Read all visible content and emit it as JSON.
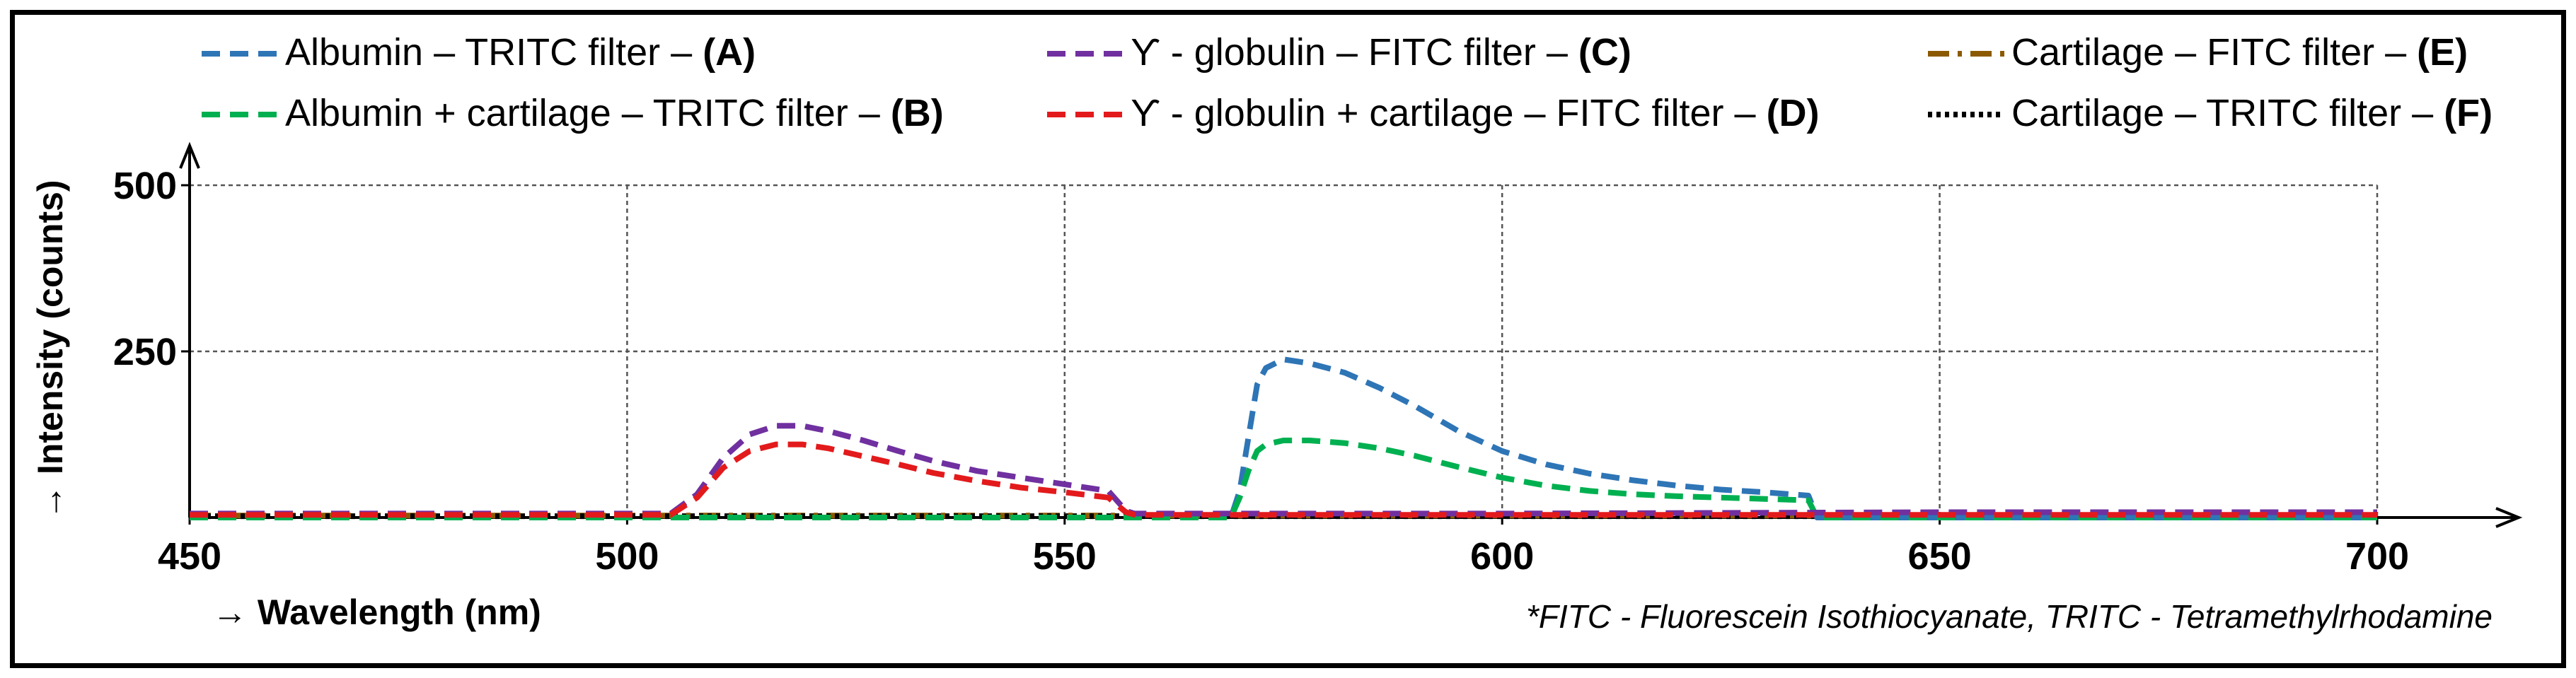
{
  "chart_data": {
    "type": "line",
    "title": "",
    "xlabel": "→ Wavelength (nm)",
    "ylabel": "→ Intensity (counts)",
    "xlim": [
      450,
      700
    ],
    "ylim": [
      0,
      500
    ],
    "x_ticks": [
      "450",
      "500",
      "550",
      "600",
      "650",
      "700"
    ],
    "y_ticks": [
      "250",
      "500"
    ],
    "grid": true,
    "legend_position": "top",
    "footnote": "*FITC - Fluorescein Isothiocyanate, TRITC - Tetramethylrhodamine",
    "series": [
      {
        "name": "Albumin – TRITC filter – ",
        "label": "(A)",
        "color": "#2E75B6",
        "dash": "dashed",
        "x": [
          450,
          569,
          570,
          571,
          572,
          573,
          575,
          578,
          582,
          586,
          590,
          595,
          600,
          605,
          610,
          615,
          620,
          625,
          630,
          635,
          636,
          650,
          700
        ],
        "y": [
          0,
          0,
          40,
          120,
          200,
          225,
          238,
          232,
          218,
          195,
          168,
          130,
          100,
          80,
          66,
          56,
          48,
          42,
          38,
          33,
          0,
          0,
          0
        ]
      },
      {
        "name": "Albumin + cartilage – TRITC filter – ",
        "label": "(B)",
        "color": "#00B050",
        "dash": "dashed",
        "x": [
          450,
          569,
          570,
          571,
          572,
          573,
          575,
          578,
          582,
          586,
          590,
          595,
          600,
          605,
          610,
          615,
          620,
          625,
          630,
          635,
          636,
          650,
          700
        ],
        "y": [
          0,
          0,
          30,
          70,
          100,
          110,
          116,
          116,
          112,
          104,
          93,
          76,
          60,
          48,
          40,
          35,
          32,
          30,
          28,
          26,
          0,
          0,
          0
        ]
      },
      {
        "name": "ϒ - globulin – FITC filter – ",
        "label": "(C)",
        "color": "#7030A0",
        "dash": "dashed",
        "x": [
          450,
          505,
          508,
          511,
          514,
          517,
          520,
          523,
          527,
          531,
          535,
          540,
          545,
          550,
          555,
          557,
          558,
          600,
          650,
          700
        ],
        "y": [
          6,
          6,
          35,
          90,
          125,
          138,
          138,
          130,
          116,
          100,
          85,
          70,
          60,
          50,
          40,
          10,
          6,
          6,
          8,
          8
        ]
      },
      {
        "name": "ϒ - globulin + cartilage – FITC filter – ",
        "label": "(D)",
        "color": "#E31A1C",
        "dash": "dashed",
        "x": [
          450,
          505,
          508,
          511,
          514,
          517,
          520,
          523,
          527,
          531,
          535,
          540,
          545,
          550,
          555,
          557,
          558,
          600,
          650,
          700
        ],
        "y": [
          4,
          4,
          30,
          75,
          100,
          110,
          110,
          104,
          92,
          80,
          67,
          55,
          45,
          38,
          30,
          8,
          4,
          4,
          4,
          4
        ]
      },
      {
        "name": "Cartilage – FITC filter – ",
        "label": "(E)",
        "color": "#8B5A00",
        "dash": "dashdot",
        "x": [
          450,
          700
        ],
        "y": [
          3,
          3
        ]
      },
      {
        "name": "Cartilage – TRITC filter – ",
        "label": "(F)",
        "color": "#000000",
        "dash": "dotted",
        "x": [
          450,
          700
        ],
        "y": [
          2,
          2
        ]
      }
    ]
  }
}
